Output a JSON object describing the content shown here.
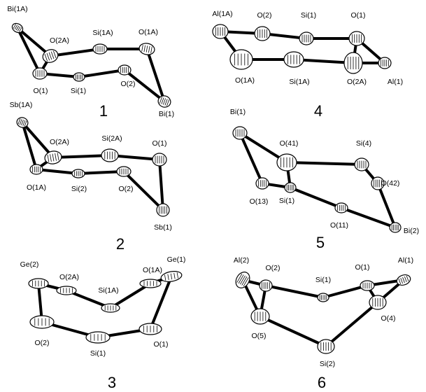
{
  "panels": [
    {
      "number": "1",
      "atoms": [
        "Bi(1A)",
        "O(2A)",
        "Si(1A)",
        "O(1A)",
        "O(1)",
        "Si(1)",
        "O(2)",
        "Bi(1)"
      ]
    },
    {
      "number": "2",
      "atoms": [
        "Sb(1A)",
        "O(2A)",
        "Si(2A)",
        "O(1)",
        "O(1A)",
        "Si(2)",
        "O(2)",
        "Sb(1)"
      ]
    },
    {
      "number": "3",
      "atoms": [
        "Ge(2)",
        "O(2A)",
        "Si(1A)",
        "O(1A)",
        "Ge(1)",
        "O(2)",
        "Si(1)",
        "O(1)"
      ]
    },
    {
      "number": "4",
      "atoms": [
        "Al(1A)",
        "O(2)",
        "Si(1)",
        "O(1)",
        "O(1A)",
        "Si(1A)",
        "O(2A)",
        "Al(1)"
      ]
    },
    {
      "number": "5",
      "atoms": [
        "Bi(1)",
        "O(41)",
        "Si(4)",
        "O(42)",
        "O(13)",
        "Si(1)",
        "O(11)",
        "Bi(2)"
      ]
    },
    {
      "number": "6",
      "atoms": [
        "Al(2)",
        "O(2)",
        "Si(1)",
        "O(1)",
        "Al(1)",
        "O(4)",
        "O(5)",
        "Si(2)"
      ]
    }
  ]
}
